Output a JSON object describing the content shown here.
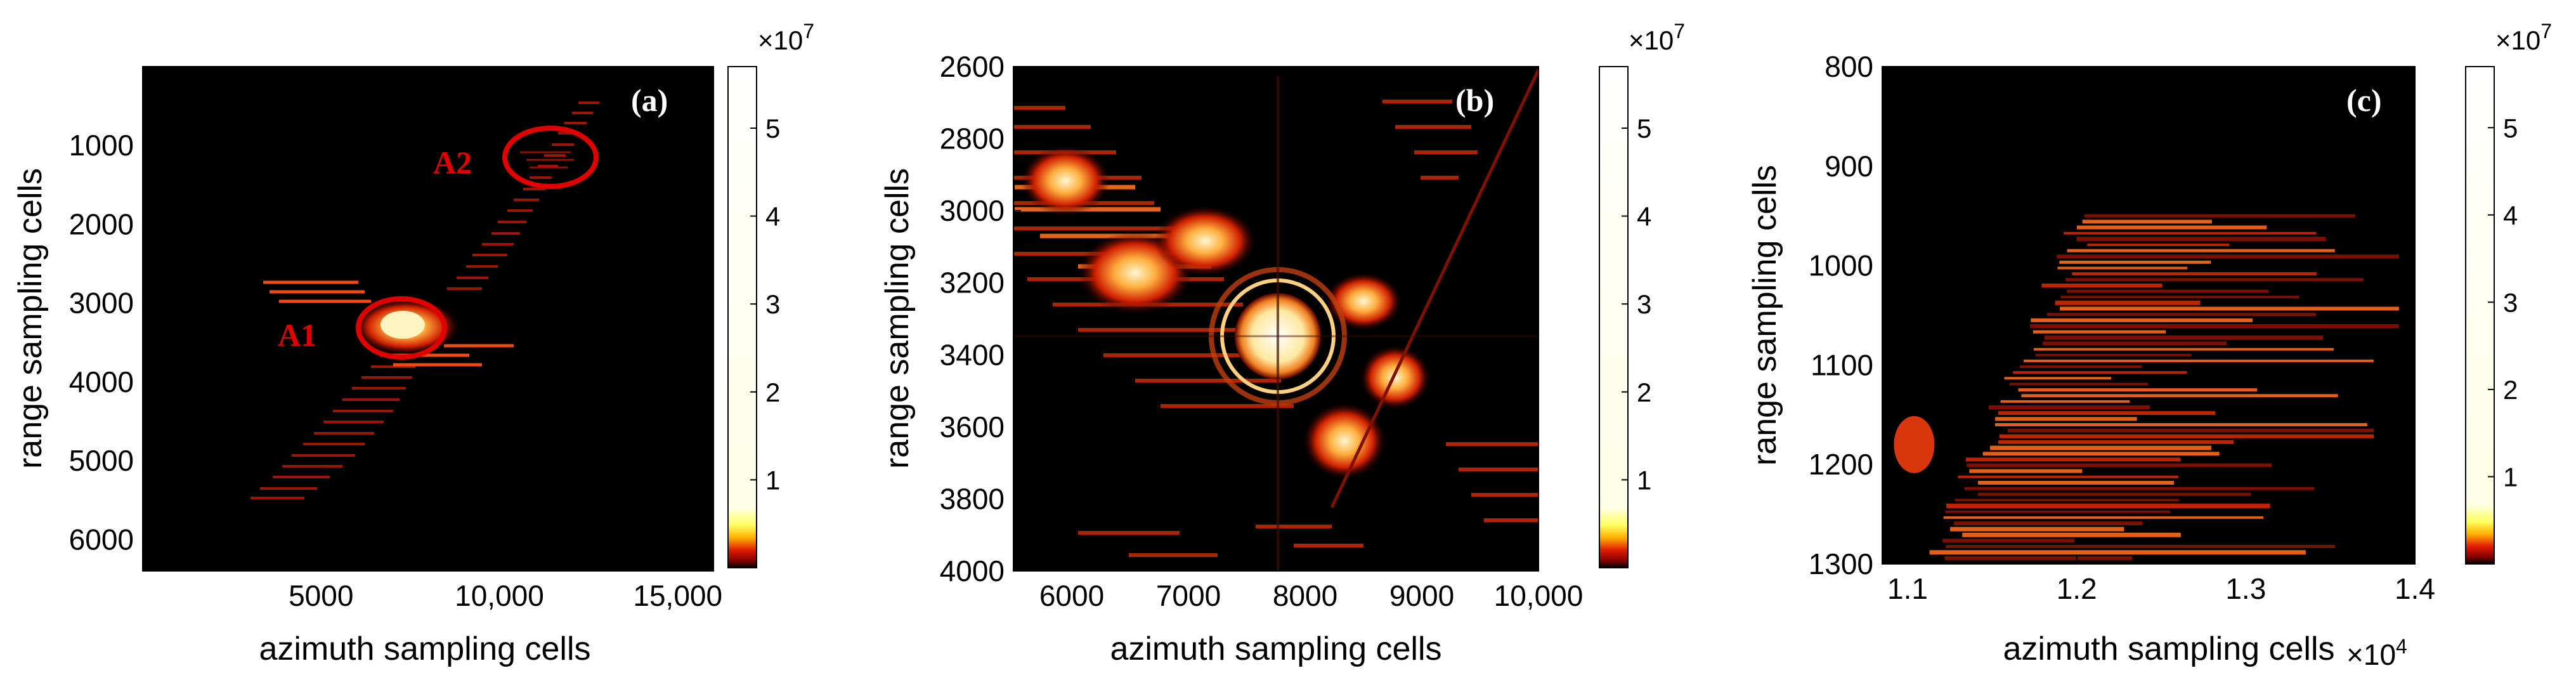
{
  "chart_data": [
    {
      "type": "heatmap",
      "panel_label": "(a)",
      "xlabel": "azimuth sampling cells",
      "ylabel": "range sampling cells",
      "xlim": [
        0,
        16000
      ],
      "ylim": [
        6400,
        0
      ],
      "xticks": [
        5000,
        10000,
        15000
      ],
      "xtick_labels": [
        "5000",
        "10,000",
        "15,000"
      ],
      "yticks": [
        1000,
        2000,
        3000,
        4000,
        5000,
        6000
      ],
      "ytick_labels": [
        "1000",
        "2000",
        "3000",
        "4000",
        "5000",
        "6000"
      ],
      "colorbar": {
        "exponent": "×10",
        "power": "7",
        "ticks": [
          1,
          2,
          3,
          4,
          5
        ],
        "tick_labels": [
          "1",
          "2",
          "3",
          "4",
          "5"
        ],
        "range": [
          0,
          5.7
        ]
      },
      "annotations": [
        {
          "text": "A1",
          "x": 7200,
          "y": 3300
        },
        {
          "text": "A2",
          "x": 11700,
          "y": 1150
        }
      ]
    },
    {
      "type": "heatmap",
      "panel_label": "(b)",
      "xlabel": "azimuth sampling cells",
      "ylabel": "range sampling cells",
      "xlim": [
        5500,
        10000
      ],
      "ylim": [
        4000,
        2600
      ],
      "xticks": [
        6000,
        7000,
        8000,
        9000,
        10000
      ],
      "xtick_labels": [
        "6000",
        "7000",
        "8000",
        "9000",
        "10,000"
      ],
      "yticks": [
        2600,
        2800,
        3000,
        3200,
        3400,
        3600,
        3800,
        4000
      ],
      "ytick_labels": [
        "2600",
        "2800",
        "3000",
        "3200",
        "3400",
        "3600",
        "3800",
        "4000"
      ],
      "colorbar": {
        "exponent": "×10",
        "power": "7",
        "ticks": [
          1,
          2,
          3,
          4,
          5
        ],
        "tick_labels": [
          "1",
          "2",
          "3",
          "4",
          "5"
        ],
        "range": [
          0,
          5.7
        ]
      }
    },
    {
      "type": "heatmap",
      "panel_label": "(c)",
      "xlabel": "azimuth sampling cells",
      "x_exponent": "×10",
      "x_power": "4",
      "ylabel": "range sampling cells",
      "xlim": [
        1.085,
        1.4
      ],
      "ylim": [
        1300,
        800
      ],
      "xticks": [
        1.1,
        1.2,
        1.3,
        1.4
      ],
      "xtick_labels": [
        "1.1",
        "1.2",
        "1.3",
        "1.4"
      ],
      "yticks": [
        800,
        900,
        1000,
        1100,
        1200,
        1300
      ],
      "ytick_labels": [
        "800",
        "900",
        "1000",
        "1100",
        "1200",
        "1300"
      ],
      "colorbar": {
        "exponent": "×10",
        "power": "7",
        "ticks": [
          1,
          2,
          3,
          4,
          5
        ],
        "tick_labels": [
          "1",
          "2",
          "3",
          "4",
          "5"
        ],
        "range": [
          0,
          5.7
        ]
      }
    }
  ]
}
